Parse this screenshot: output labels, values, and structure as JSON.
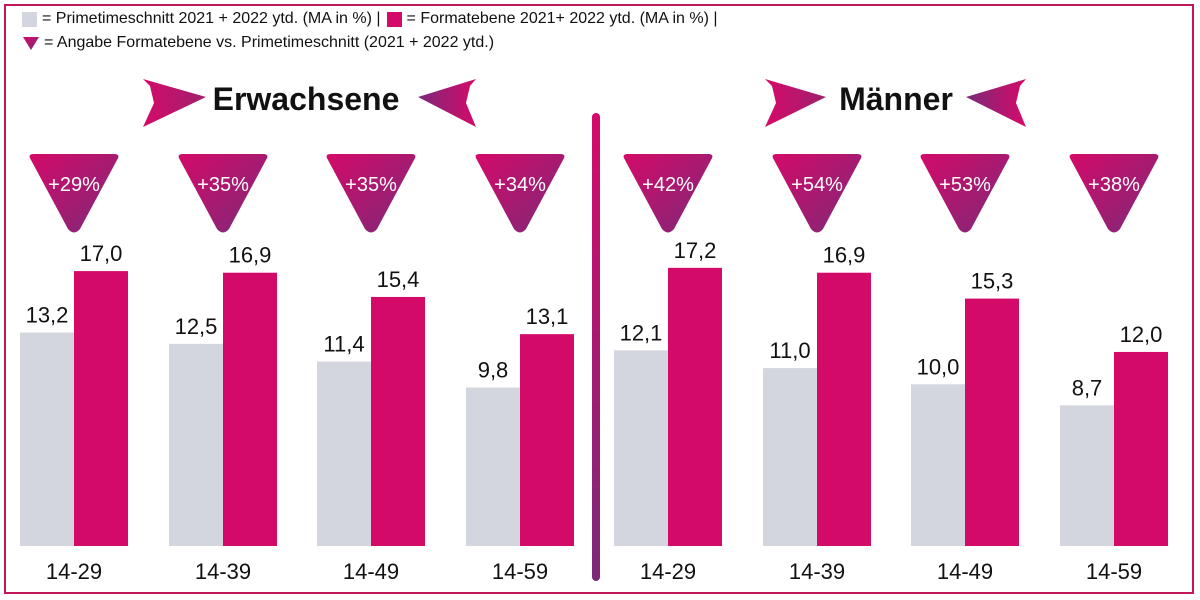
{
  "legend": {
    "primetime_label": "= Primetimeschnitt 2021 + 2022 ytd.  (MA in %) |",
    "format_label": "= Formatebene 2021+ 2022 ytd. (MA in %) |",
    "delta_label": "= Angabe Formatebene vs. Primetimeschnitt (2021 + 2022 ytd.)"
  },
  "colors": {
    "primetime": "#d3d6de",
    "format": "#d40a69",
    "accent_dark": "#7b2a78",
    "frame": "#c2185b"
  },
  "chart_data": [
    {
      "type": "bar",
      "title": "Erwachsene",
      "categories": [
        "14-29",
        "14-39",
        "14-49",
        "14-59"
      ],
      "series": [
        {
          "values": [
            13.2,
            12.5,
            11.4,
            9.8
          ],
          "value_labels": [
            "13,2",
            "12,5",
            "11,4",
            "9,8"
          ]
        },
        {
          "values": [
            17.0,
            16.9,
            15.4,
            13.1
          ],
          "value_labels": [
            "17,0",
            "16,9",
            "15,4",
            "13,1"
          ]
        }
      ],
      "deltas": [
        "+29%",
        "+35%",
        "+35%",
        "+34%"
      ],
      "ylim": [
        0,
        17.5
      ]
    },
    {
      "type": "bar",
      "title": "Männer",
      "categories": [
        "14-29",
        "14-39",
        "14-49",
        "14-59"
      ],
      "series": [
        {
          "values": [
            12.1,
            11.0,
            10.0,
            8.7
          ],
          "value_labels": [
            "12,1",
            "11,0",
            "10,0",
            "8,7"
          ]
        },
        {
          "values": [
            17.2,
            16.9,
            15.3,
            12.0
          ],
          "value_labels": [
            "17,2",
            "16,9",
            "15,3",
            "12,0"
          ]
        }
      ],
      "deltas": [
        "+42%",
        "+54%",
        "+53%",
        "+38%"
      ],
      "ylim": [
        0,
        17.5
      ]
    }
  ]
}
